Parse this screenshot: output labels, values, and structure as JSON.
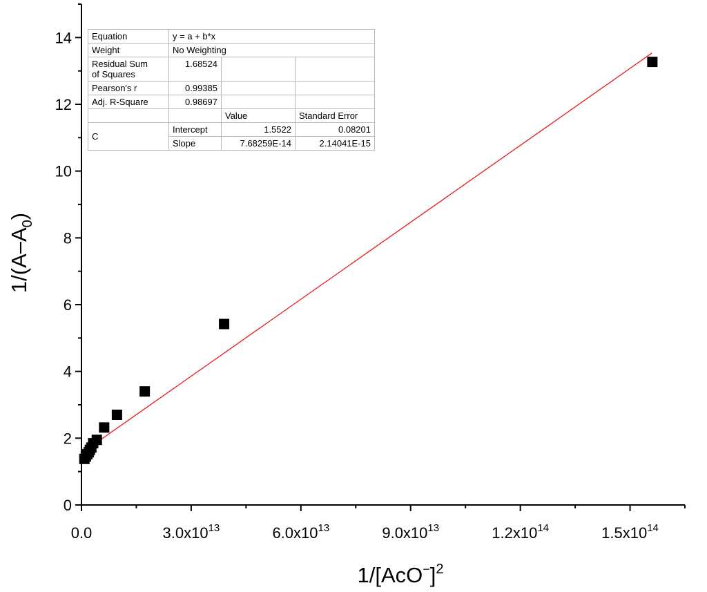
{
  "chart_data": {
    "type": "scatter",
    "xlabel": {
      "base": "1/[AcO",
      "sup1": "−",
      "mid": "]",
      "sup2": "2"
    },
    "ylabel": {
      "base": "1/(A–A",
      "sub": "0",
      "end": ")"
    },
    "xlim": [
      0,
      165000000000000.0
    ],
    "ylim": [
      0,
      15
    ],
    "x_ticks": [
      {
        "value": 0,
        "label": "0.0"
      },
      {
        "value": 30000000000000.0,
        "mantissa": "3.0x10",
        "exp": "13"
      },
      {
        "value": 60000000000000.0,
        "mantissa": "6.0x10",
        "exp": "13"
      },
      {
        "value": 90000000000000.0,
        "mantissa": "9.0x10",
        "exp": "13"
      },
      {
        "value": 120000000000000.0,
        "mantissa": "1.2x10",
        "exp": "14"
      },
      {
        "value": 150000000000000.0,
        "mantissa": "1.5x10",
        "exp": "14"
      }
    ],
    "y_ticks": [
      0,
      2,
      4,
      6,
      8,
      10,
      12,
      14
    ],
    "series": [
      {
        "points": [
          {
            "x": 800000000000.0,
            "y": 1.38
          },
          {
            "x": 1200000000000.0,
            "y": 1.45
          },
          {
            "x": 1600000000000.0,
            "y": 1.52
          },
          {
            "x": 2000000000000.0,
            "y": 1.58
          },
          {
            "x": 2300000000000.0,
            "y": 1.65
          },
          {
            "x": 2700000000000.0,
            "y": 1.72
          },
          {
            "x": 3200000000000.0,
            "y": 1.85
          },
          {
            "x": 4200000000000.0,
            "y": 1.95
          },
          {
            "x": 6200000000000.0,
            "y": 2.32
          },
          {
            "x": 9700000000000.0,
            "y": 2.7
          },
          {
            "x": 17300000000000.0,
            "y": 3.4
          },
          {
            "x": 39000000000000.0,
            "y": 5.42
          },
          {
            "x": 156100000000000.0,
            "y": 13.27
          }
        ],
        "color": "#000000"
      }
    ],
    "fit": {
      "intercept": 1.5522,
      "slope": 7.68259e-14,
      "x_start": 0,
      "x_end": 156000000000000.0,
      "color": "#e8191c"
    },
    "fit_table": {
      "equation_label": "Equation",
      "equation": "y = a + b*x",
      "weight_label": "Weight",
      "weight": "No Weighting",
      "rss_label_1": "Residual Sum",
      "rss_label_2": "of Squares",
      "rss": "1.68524",
      "pearson_label": "Pearson's r",
      "pearson": "0.99385",
      "adjr_label": "Adj. R-Square",
      "adjr": "0.98697",
      "value_header": "Value",
      "se_header": "Standard Error",
      "group_label": "C",
      "intercept_label": "Intercept",
      "intercept_value": "1.5522",
      "intercept_se": "0.08201",
      "slope_label": "Slope",
      "slope_value": "7.68259E-14",
      "slope_se": "2.14041E-15"
    }
  }
}
